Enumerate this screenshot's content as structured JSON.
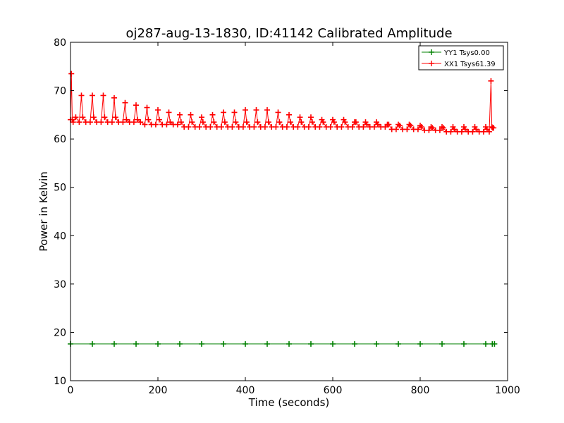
{
  "chart_data": {
    "type": "line",
    "title": "oj287-aug-13-1830, ID:41142 Calibrated Amplitude",
    "xlabel": "Time (seconds)",
    "ylabel": "Power in Kelvin",
    "xlim": [
      0,
      1000
    ],
    "ylim": [
      10,
      80
    ],
    "xticks": [
      "0",
      "200",
      "400",
      "600",
      "800",
      "1000"
    ],
    "yticks": [
      "10",
      "20",
      "30",
      "40",
      "50",
      "60",
      "70",
      "80"
    ],
    "grid": false,
    "legend_position": "top-right",
    "marker": "+",
    "series": [
      {
        "name": "YY1 Tsys0.00",
        "color": "#008000",
        "x": [
          0,
          50,
          100,
          150,
          200,
          250,
          300,
          350,
          400,
          450,
          500,
          550,
          600,
          650,
          700,
          750,
          800,
          850,
          900,
          950,
          965,
          970
        ],
        "y": [
          17.6,
          17.6,
          17.6,
          17.6,
          17.6,
          17.6,
          17.6,
          17.6,
          17.6,
          17.6,
          17.6,
          17.6,
          17.6,
          17.6,
          17.6,
          17.6,
          17.6,
          17.6,
          17.6,
          17.6,
          17.6,
          17.6
        ]
      },
      {
        "name": "XX1 Tsys61.39",
        "color": "#ff0000",
        "x": [
          0,
          2,
          4,
          6,
          12,
          20,
          25,
          28,
          35,
          45,
          50,
          53,
          60,
          70,
          75,
          78,
          85,
          95,
          100,
          103,
          110,
          120,
          125,
          128,
          135,
          145,
          150,
          153,
          160,
          170,
          175,
          178,
          185,
          195,
          200,
          203,
          210,
          220,
          225,
          228,
          235,
          245,
          250,
          253,
          260,
          270,
          275,
          278,
          285,
          295,
          300,
          303,
          310,
          320,
          325,
          328,
          335,
          345,
          350,
          353,
          360,
          370,
          375,
          378,
          385,
          395,
          400,
          403,
          410,
          420,
          425,
          428,
          435,
          445,
          450,
          453,
          460,
          470,
          475,
          478,
          485,
          495,
          500,
          503,
          510,
          520,
          525,
          528,
          535,
          545,
          550,
          553,
          560,
          570,
          575,
          578,
          585,
          595,
          600,
          603,
          610,
          620,
          625,
          628,
          635,
          645,
          650,
          653,
          660,
          670,
          675,
          678,
          685,
          695,
          700,
          703,
          710,
          720,
          725,
          728,
          735,
          745,
          750,
          753,
          760,
          770,
          775,
          778,
          785,
          795,
          800,
          803,
          810,
          820,
          825,
          828,
          835,
          845,
          850,
          853,
          860,
          870,
          875,
          878,
          885,
          895,
          900,
          903,
          910,
          920,
          925,
          928,
          935,
          945,
          950,
          953,
          958,
          962,
          964,
          966,
          968
        ],
        "y": [
          64,
          73.5,
          64,
          63.5,
          64.5,
          63.5,
          69,
          64.5,
          63.5,
          63.5,
          69,
          64.5,
          63.5,
          63.5,
          69,
          64.5,
          63.5,
          63.5,
          68.5,
          64.5,
          63.5,
          63.5,
          67.5,
          64,
          63.5,
          63.5,
          67,
          64,
          63.5,
          63,
          66.5,
          64,
          63,
          63,
          66,
          64,
          63,
          63,
          65.5,
          63.5,
          63,
          63,
          65,
          63.5,
          62.5,
          62.5,
          65,
          63.5,
          62.5,
          62.5,
          64.5,
          63.5,
          62.5,
          62.5,
          65,
          63.5,
          62.5,
          62.5,
          65.5,
          63.5,
          62.5,
          62.5,
          65.5,
          63.5,
          62.5,
          62.5,
          66,
          63.5,
          62.5,
          62.5,
          66,
          63.5,
          62.5,
          62.5,
          66,
          63.5,
          62.5,
          62.5,
          65.5,
          63.5,
          62.5,
          62.5,
          65,
          63.5,
          62.5,
          62.5,
          64.5,
          63.5,
          62.5,
          62.5,
          64.5,
          63.5,
          62.5,
          62.5,
          64,
          63.5,
          62.5,
          62.5,
          64,
          63.5,
          62.5,
          62.5,
          64,
          63.5,
          62.5,
          62.5,
          63.5,
          63.5,
          62.5,
          62.5,
          63.5,
          63,
          62.5,
          62.5,
          63.5,
          63,
          62.5,
          62.5,
          63,
          63,
          62,
          62,
          63,
          62.8,
          62,
          62,
          63,
          62.8,
          62,
          62,
          62.8,
          62.5,
          61.8,
          61.8,
          62.5,
          62.3,
          61.8,
          61.8,
          62.5,
          62.3,
          61.5,
          61.5,
          62.5,
          62,
          61.5,
          61.5,
          62.5,
          62,
          61.5,
          61.5,
          62.5,
          62,
          61.5,
          61.5,
          62.5,
          62,
          61.5,
          72,
          62.5,
          62.3,
          62.3
        ]
      }
    ]
  }
}
